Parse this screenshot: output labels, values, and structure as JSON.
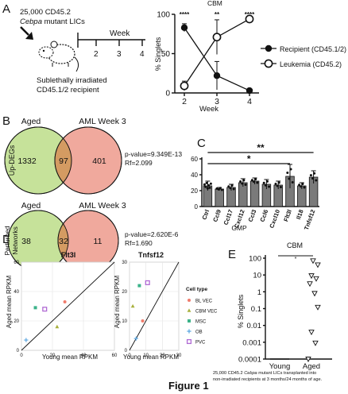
{
  "panel_labels": {
    "A": "A",
    "B": "B",
    "C": "C",
    "D": "D",
    "E": "E"
  },
  "schematic": {
    "line1": "25,000 CD45.2",
    "line2_italic": "Cebpa",
    "line2_rest": "mutant LICs",
    "timeline_title": "Week",
    "ticks": [
      "2",
      "3",
      "4"
    ],
    "caption1": "Sublethally irradiated",
    "caption2": "CD45.1/2 recipient"
  },
  "venn": [
    {
      "side_label": "Up-DEGs",
      "left_title": "Aged",
      "right_title": "AML Week 3",
      "left_only": "1332",
      "overlap": "97",
      "right_only": "401",
      "pvalue": "p-value=9.349E-13",
      "rf": "Rf=2.099"
    },
    {
      "side_label_lines": [
        "Perturbed",
        "Networks"
      ],
      "left_title": "Aged",
      "right_title": "AML Week 3",
      "left_only": "38",
      "overlap": "32",
      "right_only": "11",
      "pvalue": "p-value=2.620E-6",
      "rf": "Rf=1.690"
    }
  ],
  "colors": {
    "venn_left": "#c6e29a",
    "venn_right": "#f0a99d",
    "venn_overlap": "#d49b62",
    "bar_fill": "#7a7a7a",
    "bl_vec": "#f07c6c",
    "cbm_vec": "#a8b03c",
    "msc": "#3cb38a",
    "ob": "#5aa6e0",
    "pvc": "#b06ad4"
  },
  "figure_title": "Figure 1",
  "footnote_line1_pre": "25,000 CD45.2 ",
  "footnote_line1_italic": "Cebpa",
  "footnote_line1_post": " mutant LICs transplanted into",
  "footnote_line2": "non-irradiated recipients at 3 months/24 months of age.",
  "chart_data": [
    {
      "id": "A-line",
      "type": "line",
      "title": "CBM",
      "xlabel": "Week",
      "ylabel": "% Singlets",
      "x": [
        2,
        3,
        4
      ],
      "ylim": [
        0,
        100
      ],
      "yticks": [
        0,
        50,
        100
      ],
      "series": [
        {
          "name": "Recipient (CD45.1/2)",
          "values": [
            83,
            22,
            3
          ],
          "marker": "filled"
        },
        {
          "name": "Leukemia (CD45.2)",
          "values": [
            9,
            71,
            94
          ],
          "marker": "open"
        }
      ],
      "errors_recipient": [
        5,
        18,
        1
      ],
      "errors_leukemia": [
        6,
        22,
        2
      ],
      "annotations": [
        "****",
        "**",
        "****"
      ],
      "legend": "right"
    },
    {
      "id": "C-bar",
      "type": "bar",
      "xlabel": "GMP",
      "ylim": [
        0,
        60
      ],
      "yticks": [
        0,
        20,
        40,
        60
      ],
      "categories": [
        "Ctrl",
        "Ccl9",
        "Ccl17",
        "Cxcl12",
        "Ccl3",
        "Ccl6",
        "Cxcl10",
        "Flt3l",
        "Il18",
        "Tnfsf12"
      ],
      "values": [
        26,
        22,
        24,
        30,
        32,
        28,
        27,
        38,
        26,
        37
      ],
      "errors": [
        6,
        2,
        4,
        5,
        4,
        6,
        5,
        15,
        4,
        8
      ],
      "significance": [
        {
          "label": "**",
          "from": "Ctrl",
          "to": "Tnfsf12"
        },
        {
          "label": "*",
          "from": "Ctrl",
          "to": "Flt3l"
        }
      ]
    },
    {
      "id": "D-flt3l",
      "type": "scatter",
      "title": "Flt3l",
      "xlabel": "Young mean RPKM",
      "ylabel": "Aged mean RPKM",
      "xlim": [
        0,
        60
      ],
      "ylim": [
        0,
        60
      ],
      "xticks": [
        0,
        20,
        40,
        60
      ],
      "yticks": [
        0,
        20,
        40,
        60
      ],
      "points": [
        {
          "group": "BL VEC",
          "x": 28,
          "y": 33
        },
        {
          "group": "CBM VEC",
          "x": 23,
          "y": 16
        },
        {
          "group": "MSC",
          "x": 9,
          "y": 29
        },
        {
          "group": "OB",
          "x": 3,
          "y": 7
        },
        {
          "group": "PVC",
          "x": 15,
          "y": 28
        }
      ]
    },
    {
      "id": "D-tnfsf12",
      "type": "scatter",
      "title": "Tnfsf12",
      "xlabel": "Young mean RPKM",
      "ylabel": "Aged mean RPKM",
      "xlim": [
        0,
        30
      ],
      "ylim": [
        0,
        30
      ],
      "xticks": [
        0,
        10,
        20,
        30
      ],
      "yticks": [
        0,
        10,
        20,
        30
      ],
      "legend_title": "Cell type",
      "legend": "right",
      "points": [
        {
          "group": "BL VEC",
          "x": 8,
          "y": 10
        },
        {
          "group": "CBM VEC",
          "x": 2,
          "y": 15
        },
        {
          "group": "MSC",
          "x": 6,
          "y": 22
        },
        {
          "group": "OB",
          "x": 4,
          "y": 4
        },
        {
          "group": "PVC",
          "x": 11,
          "y": 23
        }
      ],
      "groups": [
        "BL VEC",
        "CBM VEC",
        "MSC",
        "OB",
        "PVC"
      ]
    },
    {
      "id": "E-scatter",
      "type": "scatter",
      "title": "CBM",
      "ylabel": "% Singlets",
      "scale": "log",
      "yticks": [
        "100",
        "10",
        "1",
        "0.1",
        "0.01",
        "0.001",
        "0.0001"
      ],
      "categories": [
        "Young",
        "Aged"
      ],
      "significance": "*",
      "young_values": [
        0.0001,
        0.0001,
        0.0001,
        0.0001,
        0.0001,
        0.0001
      ],
      "aged_values": [
        70,
        40,
        9,
        6,
        3,
        0.8,
        0.12,
        0.004,
        0.0009,
        0.0001
      ]
    }
  ]
}
